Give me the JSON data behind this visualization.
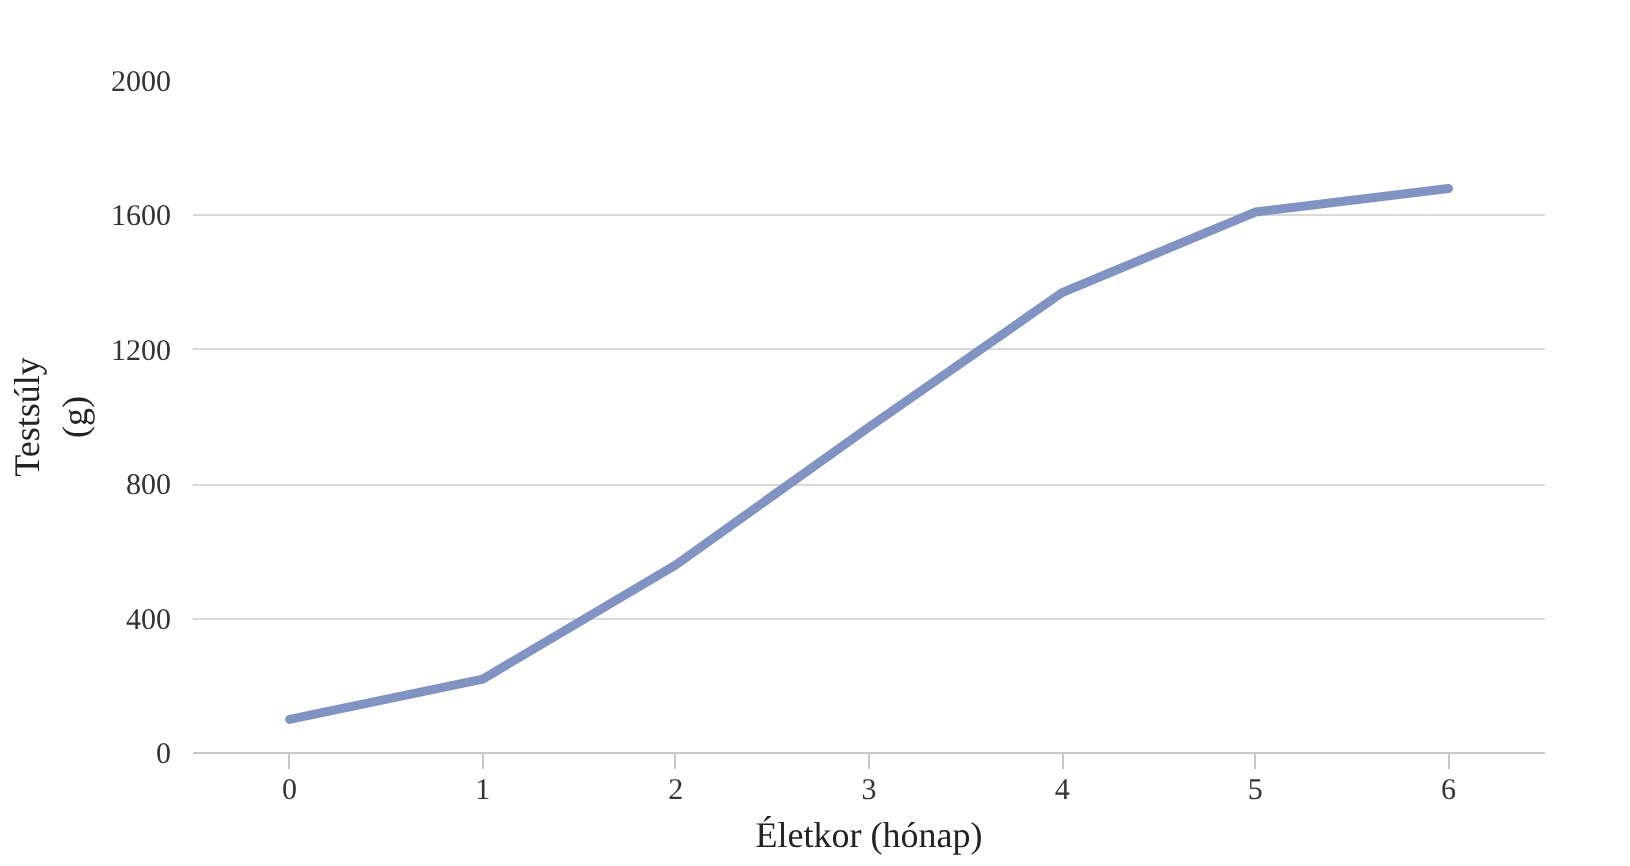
{
  "chart_data": {
    "type": "line",
    "xlabel": "Életkor (hónap)",
    "ylabel": "Testsúly (g)",
    "x": [
      0,
      1,
      2,
      3,
      4,
      5,
      6
    ],
    "series": [
      {
        "color": "#8093c2",
        "values": [
          100,
          220,
          560,
          970,
          1370,
          1610,
          1680
        ]
      }
    ],
    "xlim": [
      -0.5,
      6.5
    ],
    "xticks": [
      0,
      1,
      2,
      3,
      4,
      5,
      6
    ],
    "ylim": [
      0,
      2000
    ],
    "yticks": [
      0,
      400,
      800,
      1200,
      1600,
      2000
    ],
    "grid": "y",
    "marker": "none",
    "line_style": "solid"
  }
}
